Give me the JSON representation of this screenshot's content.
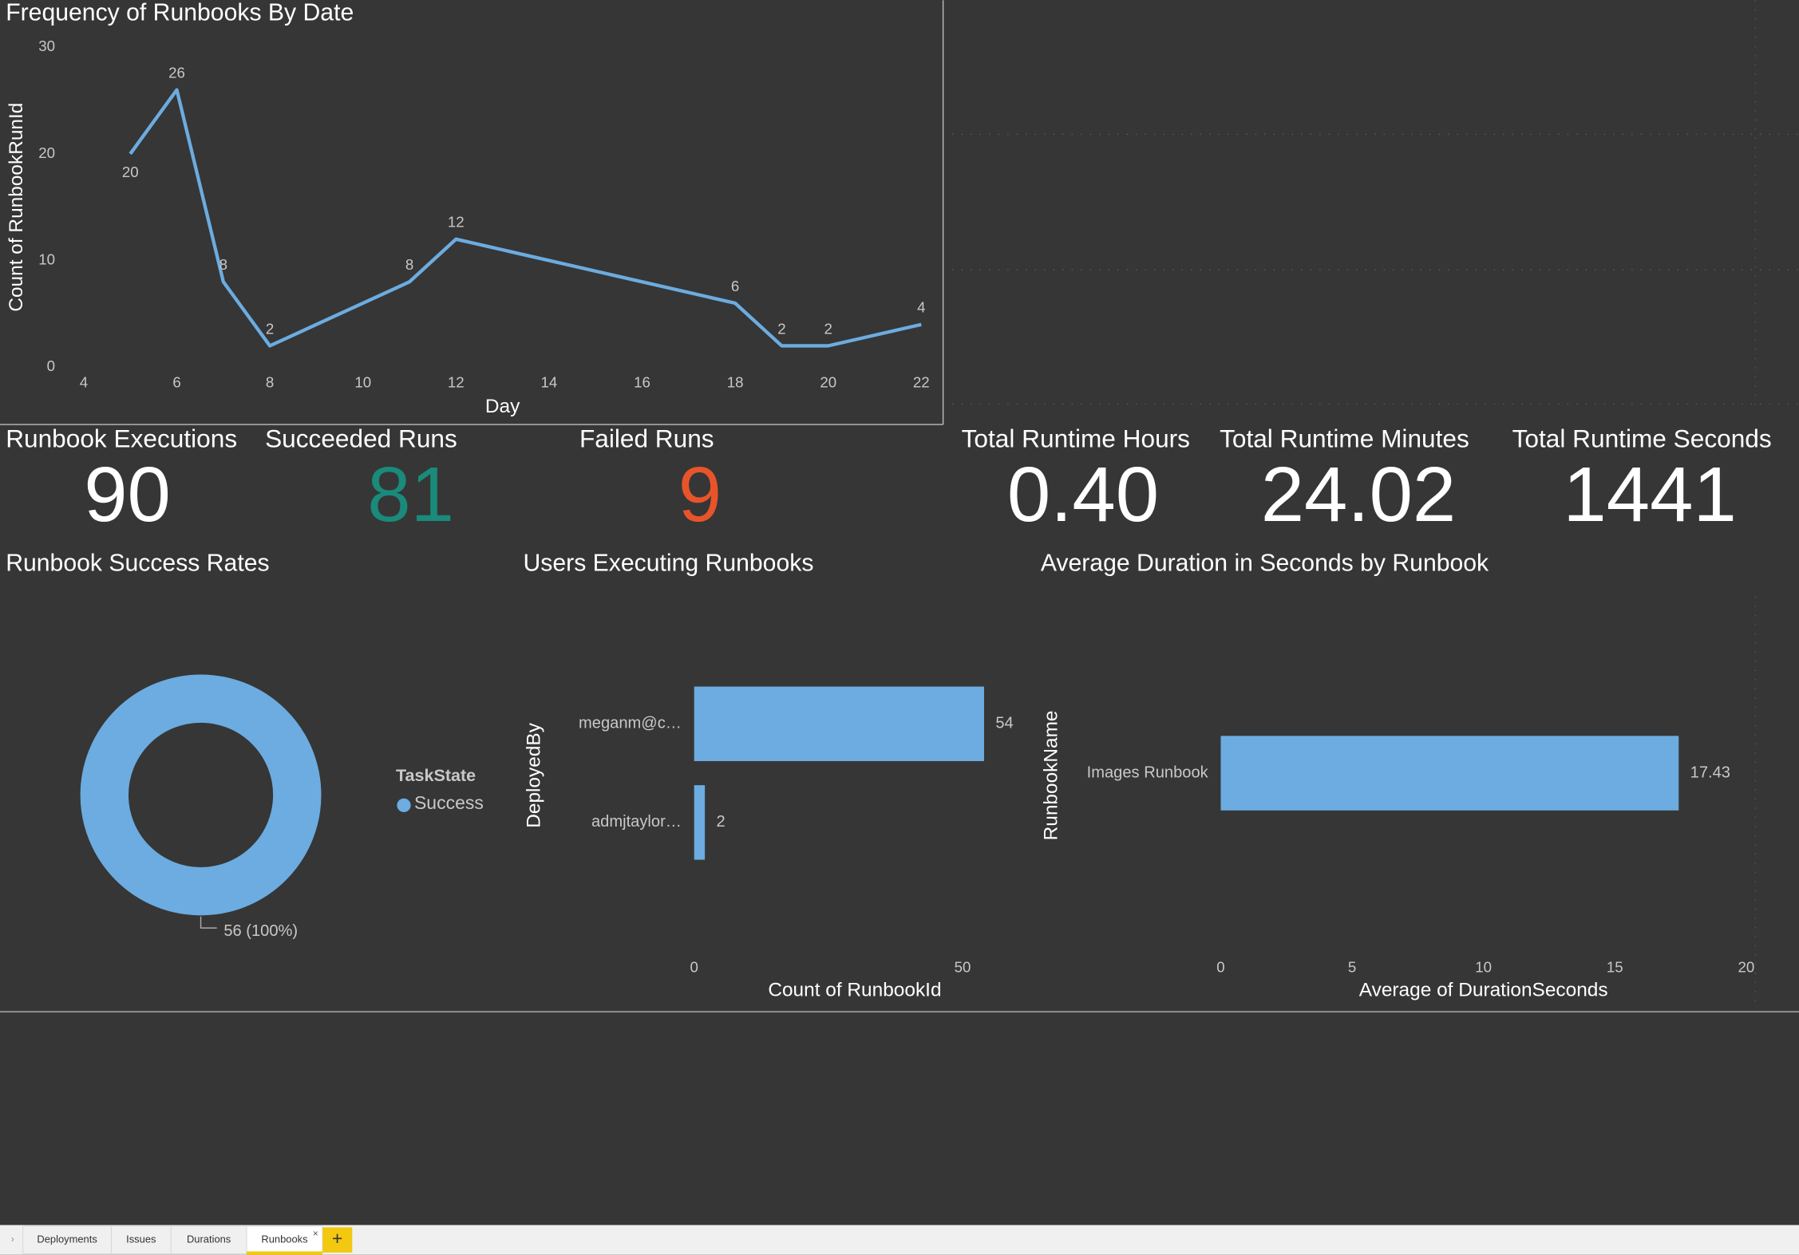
{
  "chart_data": [
    {
      "type": "line",
      "title": "Frequency of Runbooks By Date",
      "x_label": "Day",
      "y_label": "Count of RunbookRunId",
      "x": [
        5,
        6,
        7,
        8,
        11,
        12,
        18,
        19,
        20,
        22
      ],
      "values": [
        20,
        26,
        8,
        2,
        8,
        12,
        6,
        2,
        2,
        4
      ],
      "color": "#6cace0",
      "xlim": [
        4,
        22
      ],
      "xticks": [
        4,
        6,
        8,
        10,
        12,
        14,
        16,
        18,
        20,
        22
      ],
      "ylim": [
        0,
        30
      ],
      "yticks": [
        0,
        10,
        20,
        30
      ],
      "grid": false
    },
    {
      "type": "donut",
      "title": "Runbook Success Rates",
      "legend_title": "TaskState",
      "series": [
        {
          "name": "Success",
          "color": "#6cace0",
          "values": [
            56
          ],
          "value_labels": [
            "56 (100%)"
          ]
        }
      ]
    },
    {
      "type": "hbar",
      "title": "Users Executing Runbooks",
      "x_label": "Count of RunbookId",
      "y_label": "DeployedBy",
      "categories": [
        "meganm@c…",
        "admjtaylor…"
      ],
      "values": [
        54,
        2
      ],
      "color": "#6cace0",
      "xlim": [
        0,
        60
      ],
      "xticks": [
        0,
        50
      ]
    },
    {
      "type": "hbar",
      "title": "Average Duration in Seconds by Runbook",
      "x_label": "Average of DurationSeconds",
      "y_label": "RunbookName",
      "categories": [
        "Images Runbook"
      ],
      "values": [
        17.43
      ],
      "color": "#6cace0",
      "xlim": [
        0,
        20
      ],
      "xticks": [
        0,
        5,
        10,
        15,
        20
      ]
    }
  ],
  "cards": [
    {
      "title": "Runbook Executions",
      "value": 90,
      "color": "#ffffff"
    },
    {
      "title": "Succeeded Runs",
      "value": 81,
      "color": "#1a8a7a"
    },
    {
      "title": "Failed Runs",
      "value": 9,
      "color": "#e8542a"
    },
    {
      "title": "Total Runtime Hours",
      "value": "0.40",
      "color": "#ffffff"
    },
    {
      "title": "Total Runtime Minutes",
      "value": "24.02",
      "color": "#ffffff"
    },
    {
      "title": "Total Runtime Seconds",
      "value": 1441,
      "color": "#ffffff"
    }
  ],
  "tabs": [
    "Deployments",
    "Issues",
    "Durations",
    "Runbooks"
  ]
}
